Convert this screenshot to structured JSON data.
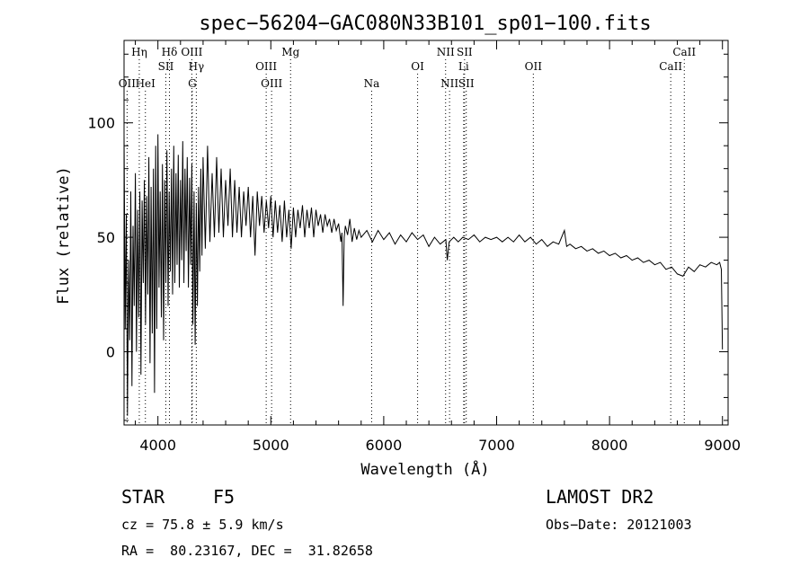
{
  "chart_data": {
    "type": "line",
    "title": "spec−56204−GAC080N33B101_sp01−100.fits",
    "xlabel": "Wavelength (Å)",
    "ylabel": "Flux (relative)",
    "xlim": [
      3700,
      9050
    ],
    "ylim": [
      -32,
      136
    ],
    "xticks": [
      4000,
      5000,
      6000,
      7000,
      8000,
      9000
    ],
    "yticks": [
      0,
      50,
      100
    ],
    "grid": false,
    "series": [
      {
        "line_points": [
          [
            3700,
            95
          ],
          [
            3710,
            10
          ],
          [
            3720,
            60
          ],
          [
            3730,
            -28
          ],
          [
            3740,
            40
          ],
          [
            3750,
            5
          ],
          [
            3760,
            70
          ],
          [
            3770,
            -15
          ],
          [
            3780,
            55
          ],
          [
            3790,
            20
          ],
          [
            3800,
            78
          ],
          [
            3810,
            0
          ],
          [
            3820,
            62
          ],
          [
            3830,
            15
          ],
          [
            3840,
            70
          ],
          [
            3850,
            -10
          ],
          [
            3860,
            66
          ],
          [
            3870,
            30
          ],
          [
            3880,
            75
          ],
          [
            3890,
            12
          ],
          [
            3900,
            68
          ],
          [
            3910,
            25
          ],
          [
            3920,
            85
          ],
          [
            3930,
            -5
          ],
          [
            3940,
            72
          ],
          [
            3950,
            8
          ],
          [
            3960,
            80
          ],
          [
            3970,
            -18
          ],
          [
            3980,
            90
          ],
          [
            3990,
            10
          ],
          [
            4000,
            95
          ],
          [
            4010,
            28
          ],
          [
            4020,
            70
          ],
          [
            4030,
            15
          ],
          [
            4040,
            82
          ],
          [
            4050,
            5
          ],
          [
            4060,
            75
          ],
          [
            4070,
            30
          ],
          [
            4080,
            88
          ],
          [
            4090,
            20
          ],
          [
            4100,
            70
          ],
          [
            4110,
            35
          ],
          [
            4120,
            80
          ],
          [
            4130,
            25
          ],
          [
            4140,
            90
          ],
          [
            4150,
            30
          ],
          [
            4160,
            78
          ],
          [
            4170,
            38
          ],
          [
            4180,
            86
          ],
          [
            4190,
            28
          ],
          [
            4200,
            75
          ],
          [
            4210,
            40
          ],
          [
            4220,
            92
          ],
          [
            4230,
            30
          ],
          [
            4240,
            80
          ],
          [
            4250,
            44
          ],
          [
            4260,
            85
          ],
          [
            4270,
            28
          ],
          [
            4280,
            76
          ],
          [
            4290,
            38
          ],
          [
            4300,
            82
          ],
          [
            4310,
            12
          ],
          [
            4320,
            70
          ],
          [
            4330,
            3
          ],
          [
            4340,
            65
          ],
          [
            4350,
            20
          ],
          [
            4360,
            72
          ],
          [
            4370,
            35
          ],
          [
            4380,
            80
          ],
          [
            4390,
            42
          ],
          [
            4400,
            85
          ],
          [
            4420,
            45
          ],
          [
            4440,
            90
          ],
          [
            4460,
            48
          ],
          [
            4480,
            78
          ],
          [
            4500,
            50
          ],
          [
            4520,
            85
          ],
          [
            4540,
            52
          ],
          [
            4560,
            80
          ],
          [
            4580,
            50
          ],
          [
            4600,
            75
          ],
          [
            4620,
            55
          ],
          [
            4640,
            80
          ],
          [
            4660,
            50
          ],
          [
            4680,
            75
          ],
          [
            4700,
            52
          ],
          [
            4720,
            72
          ],
          [
            4740,
            50
          ],
          [
            4760,
            70
          ],
          [
            4780,
            55
          ],
          [
            4800,
            72
          ],
          [
            4820,
            50
          ],
          [
            4840,
            68
          ],
          [
            4860,
            42
          ],
          [
            4880,
            70
          ],
          [
            4900,
            55
          ],
          [
            4920,
            68
          ],
          [
            4940,
            52
          ],
          [
            4960,
            66
          ],
          [
            4980,
            54
          ],
          [
            5000,
            68
          ],
          [
            5020,
            50
          ],
          [
            5040,
            66
          ],
          [
            5060,
            52
          ],
          [
            5080,
            64
          ],
          [
            5100,
            48
          ],
          [
            5120,
            66
          ],
          [
            5140,
            50
          ],
          [
            5160,
            62
          ],
          [
            5180,
            45
          ],
          [
            5200,
            63
          ],
          [
            5220,
            50
          ],
          [
            5240,
            62
          ],
          [
            5260,
            54
          ],
          [
            5280,
            64
          ],
          [
            5300,
            50
          ],
          [
            5320,
            62
          ],
          [
            5340,
            54
          ],
          [
            5360,
            63
          ],
          [
            5380,
            50
          ],
          [
            5400,
            62
          ],
          [
            5420,
            55
          ],
          [
            5440,
            60
          ],
          [
            5460,
            52
          ],
          [
            5480,
            60
          ],
          [
            5500,
            55
          ],
          [
            5520,
            58
          ],
          [
            5540,
            52
          ],
          [
            5560,
            58
          ],
          [
            5580,
            53
          ],
          [
            5600,
            56
          ],
          [
            5620,
            48
          ],
          [
            5630,
            52
          ],
          [
            5640,
            20
          ],
          [
            5650,
            50
          ],
          [
            5660,
            55
          ],
          [
            5680,
            51
          ],
          [
            5700,
            58
          ],
          [
            5720,
            48
          ],
          [
            5740,
            54
          ],
          [
            5760,
            49
          ],
          [
            5780,
            53
          ],
          [
            5800,
            50
          ],
          [
            5850,
            53
          ],
          [
            5900,
            48
          ],
          [
            5950,
            53
          ],
          [
            6000,
            49
          ],
          [
            6050,
            52
          ],
          [
            6100,
            47
          ],
          [
            6150,
            51
          ],
          [
            6200,
            48
          ],
          [
            6250,
            52
          ],
          [
            6300,
            49
          ],
          [
            6350,
            51
          ],
          [
            6400,
            46
          ],
          [
            6450,
            50
          ],
          [
            6500,
            47
          ],
          [
            6550,
            49
          ],
          [
            6563,
            40
          ],
          [
            6580,
            48
          ],
          [
            6620,
            50
          ],
          [
            6660,
            48
          ],
          [
            6700,
            50
          ],
          [
            6750,
            49
          ],
          [
            6800,
            51
          ],
          [
            6850,
            48
          ],
          [
            6900,
            50
          ],
          [
            6950,
            49
          ],
          [
            7000,
            50
          ],
          [
            7050,
            48
          ],
          [
            7100,
            50
          ],
          [
            7150,
            48
          ],
          [
            7200,
            51
          ],
          [
            7250,
            48
          ],
          [
            7300,
            50
          ],
          [
            7350,
            47
          ],
          [
            7400,
            49
          ],
          [
            7450,
            46
          ],
          [
            7500,
            48
          ],
          [
            7550,
            47
          ],
          [
            7600,
            53
          ],
          [
            7620,
            46
          ],
          [
            7650,
            47
          ],
          [
            7700,
            45
          ],
          [
            7750,
            46
          ],
          [
            7800,
            44
          ],
          [
            7850,
            45
          ],
          [
            7900,
            43
          ],
          [
            7950,
            44
          ],
          [
            8000,
            42
          ],
          [
            8050,
            43
          ],
          [
            8100,
            41
          ],
          [
            8150,
            42
          ],
          [
            8200,
            40
          ],
          [
            8250,
            41
          ],
          [
            8300,
            39
          ],
          [
            8350,
            40
          ],
          [
            8400,
            38
          ],
          [
            8450,
            39
          ],
          [
            8500,
            36
          ],
          [
            8550,
            37
          ],
          [
            8600,
            34
          ],
          [
            8650,
            33
          ],
          [
            8700,
            37
          ],
          [
            8750,
            35
          ],
          [
            8800,
            38
          ],
          [
            8850,
            37
          ],
          [
            8900,
            39
          ],
          [
            8950,
            38
          ],
          [
            8975,
            39
          ],
          [
            8990,
            36
          ],
          [
            9000,
            1
          ]
        ]
      }
    ],
    "spectral_lines": [
      {
        "label": "OII",
        "x": 3727,
        "row": 3
      },
      {
        "label": "Hη",
        "x": 3835,
        "row": 1
      },
      {
        "label": "HeI",
        "x": 3889,
        "row": 3
      },
      {
        "label": "SII",
        "x": 4070,
        "row": 2
      },
      {
        "label": "Hδ",
        "x": 4102,
        "row": 1
      },
      {
        "label": "OIII",
        "x": 4300,
        "row": 1
      },
      {
        "label": "Hγ",
        "x": 4340,
        "row": 2
      },
      {
        "label": "G",
        "x": 4304,
        "row": 3
      },
      {
        "label": "OIII",
        "x": 4959,
        "row": 2
      },
      {
        "label": "OIII",
        "x": 5007,
        "row": 3
      },
      {
        "label": "Mg",
        "x": 5175,
        "row": 1
      },
      {
        "label": "Na",
        "x": 5893,
        "row": 3
      },
      {
        "label": "OI",
        "x": 6300,
        "row": 2
      },
      {
        "label": "NII",
        "x": 6548,
        "row": 1
      },
      {
        "label": "NII",
        "x": 6583,
        "row": 3
      },
      {
        "label": "SII",
        "x": 6716,
        "row": 1
      },
      {
        "label": "Li",
        "x": 6708,
        "row": 2
      },
      {
        "label": "SII",
        "x": 6731,
        "row": 3
      },
      {
        "label": "OII",
        "x": 7325,
        "row": 2
      },
      {
        "label": "CaII",
        "x": 8542,
        "row": 2
      },
      {
        "label": "CaII",
        "x": 8662,
        "row": 1
      }
    ]
  },
  "info": {
    "object_class": "STAR",
    "subclass": "F5",
    "survey": "LAMOST DR2",
    "redshift": "cz = 75.8 ± 5.9 km/s",
    "obs_date": "Obs−Date: 20121003",
    "coords": "RA =  80.23167, DEC =  31.82658"
  }
}
